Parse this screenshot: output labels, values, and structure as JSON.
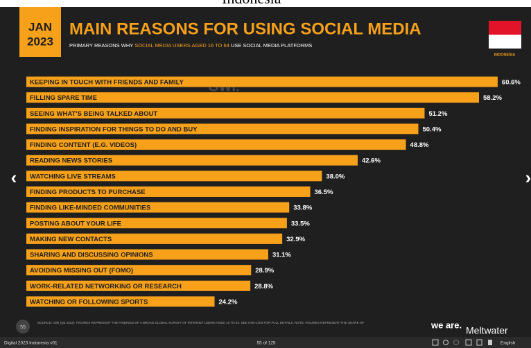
{
  "caption": "Indonesia",
  "chart_data": {
    "type": "bar",
    "badge": {
      "month": "JAN",
      "year": "2023"
    },
    "title": "MAIN REASONS FOR USING SOCIAL MEDIA",
    "subtitle": [
      "PRIMARY REASONS WHY ",
      "SOCIAL MEDIA USERS AGED 16 TO 64",
      " USE SOCIAL MEDIA PLATFORMS"
    ],
    "country": "INDONESIA",
    "watermark": "GWI.",
    "color": "#f7a11a",
    "categories": [
      "KEEPING IN TOUCH WITH FRIENDS AND FAMILY",
      "FILLING SPARE TIME",
      "SEEING WHAT'S BEING TALKED ABOUT",
      "FINDING INSPIRATION FOR THINGS TO DO AND BUY",
      "FINDING CONTENT (E.G. VIDEOS)",
      "READING NEWS STORIES",
      "WATCHING LIVE STREAMS",
      "FINDING PRODUCTS TO PURCHASE",
      "FINDING LIKE-MINDED COMMUNITIES",
      "POSTING ABOUT YOUR LIFE",
      "MAKING NEW CONTACTS",
      "SHARING AND DISCUSSING OPINIONS",
      "AVOIDING MISSING OUT (FOMO)",
      "WORK-RELATED NETWORKING OR RESEARCH",
      "WATCHING OR FOLLOWING SPORTS"
    ],
    "values": [
      60.6,
      58.2,
      51.2,
      50.4,
      48.8,
      42.6,
      38.0,
      36.5,
      33.8,
      33.5,
      32.9,
      31.1,
      28.9,
      28.8,
      24.2
    ],
    "value_labels": [
      "60.6%",
      "58.2%",
      "51.2%",
      "50.4%",
      "48.8%",
      "42.6%",
      "38.0%",
      "36.5%",
      "33.8%",
      "33.5%",
      "32.9%",
      "31.1%",
      "28.9%",
      "28.8%",
      "24.2%"
    ],
    "source": "SOURCE: GWI (Q3 2022). FIGURES REPRESENT THE FINDINGS OF A BROAD GLOBAL SURVEY OF INTERNET USERS AGED 16 TO 64. SEE GWI.COM FOR FULL DETAILS. NOTE: FIGURES REPRESENT THE SHARE OF",
    "slide_number": "55",
    "logos": [
      "we are.",
      "Meltwater"
    ]
  },
  "viewer": {
    "document": "Digital 2023 Indonesia v01",
    "page": "55 of 125",
    "language": "English",
    "prev": "‹",
    "next": "›"
  }
}
